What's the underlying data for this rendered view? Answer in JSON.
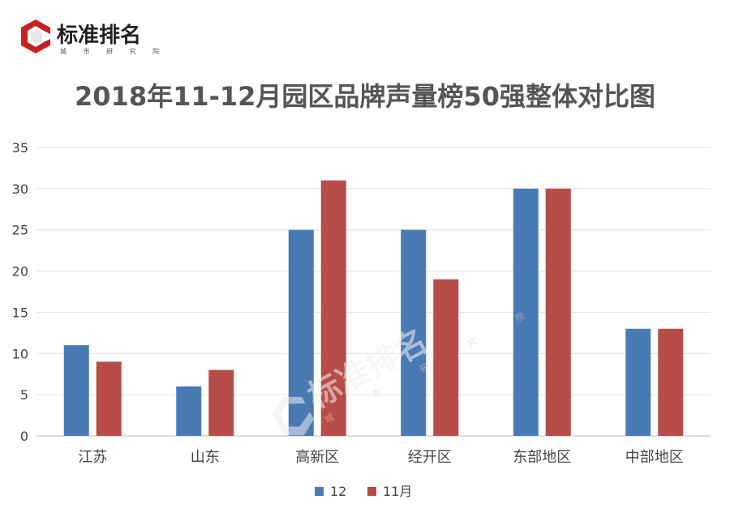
{
  "logo": {
    "name": "标准排名",
    "sub": "城 市 研 究 院"
  },
  "watermark": {
    "name": "标准排名",
    "sub": "城 市 研 究 院"
  },
  "chart_data": {
    "type": "bar",
    "title": "2018年11-12月园区品牌声量榜50强整体对比图",
    "categories": [
      "江苏",
      "山东",
      "高新区",
      "经开区",
      "东部地区",
      "中部地区"
    ],
    "series": [
      {
        "name": "12",
        "color": "#4a7ab4",
        "values": [
          11,
          6,
          25,
          25,
          30,
          13
        ]
      },
      {
        "name": "11月",
        "color": "#b84c47",
        "values": [
          9,
          8,
          31,
          19,
          30,
          13
        ]
      }
    ],
    "ylim": [
      0,
      35
    ],
    "yticks": [
      0,
      5,
      10,
      15,
      20,
      25,
      30,
      35
    ],
    "grid": true,
    "legend": "bottom",
    "xlabel": "",
    "ylabel": ""
  }
}
